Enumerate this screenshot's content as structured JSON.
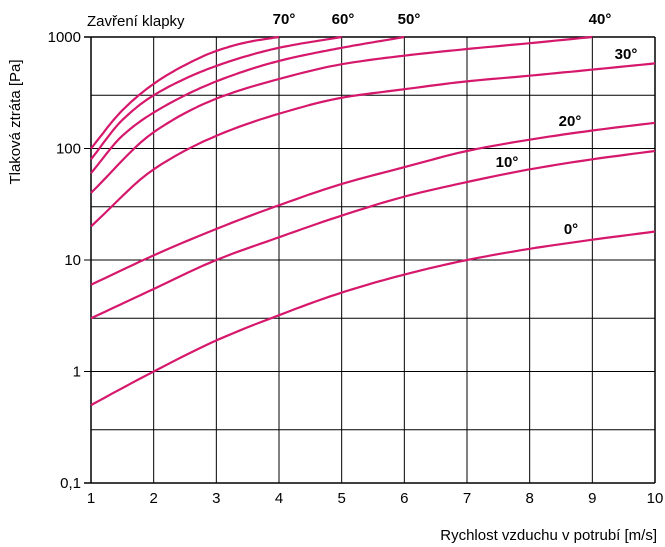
{
  "chart_data": {
    "type": "line",
    "title": "",
    "legend_title": "Zavření klapky",
    "xlabel": "Rychlost vzduchu v potrubí [m/s]",
    "ylabel": "Tlaková ztráta [Pa]",
    "xlim": [
      1,
      10
    ],
    "ylim": [
      0.1,
      1000
    ],
    "yscale": "log",
    "grid": true,
    "x_ticks": [
      "1",
      "2",
      "3",
      "4",
      "5",
      "6",
      "7",
      "8",
      "9",
      "10"
    ],
    "y_ticks": [
      "0,1",
      "1",
      "10",
      "100",
      "1000"
    ],
    "line_color": "#d6186c",
    "series": [
      {
        "name": "0°",
        "x": [
          1,
          2,
          3,
          4,
          5,
          6,
          7,
          8,
          9,
          10
        ],
        "values": [
          0.5,
          1.0,
          1.9,
          3.2,
          5.1,
          7.4,
          10,
          12.6,
          15.2,
          18
        ]
      },
      {
        "name": "10°",
        "x": [
          1,
          2,
          3,
          4,
          5,
          6,
          7,
          8,
          9,
          10
        ],
        "values": [
          3,
          5.5,
          10,
          16,
          25,
          37,
          50,
          65,
          80,
          95
        ]
      },
      {
        "name": "20°",
        "x": [
          1,
          2,
          3,
          4,
          5,
          6,
          7,
          8,
          9,
          10
        ],
        "values": [
          6,
          11,
          19,
          31,
          48,
          68,
          95,
          120,
          145,
          170
        ]
      },
      {
        "name": "30°",
        "x": [
          1,
          2,
          3,
          4,
          5,
          6,
          7,
          8,
          9,
          10
        ],
        "values": [
          20,
          65,
          130,
          205,
          285,
          340,
          400,
          450,
          510,
          580
        ]
      },
      {
        "name": "40°",
        "x": [
          1,
          2,
          3,
          4,
          5,
          6,
          7,
          8,
          9
        ],
        "values": [
          40,
          140,
          280,
          420,
          570,
          680,
          780,
          880,
          1000
        ]
      },
      {
        "name": "50°",
        "x": [
          1,
          1.5,
          2,
          3,
          4,
          5,
          6
        ],
        "values": [
          60,
          130,
          210,
          400,
          610,
          800,
          1000
        ]
      },
      {
        "name": "60°",
        "x": [
          1,
          1.5,
          2,
          3,
          4,
          5
        ],
        "values": [
          80,
          180,
          300,
          550,
          800,
          1000
        ]
      },
      {
        "name": "70°",
        "x": [
          1,
          1.5,
          2,
          2.5,
          3,
          3.5,
          4
        ],
        "values": [
          100,
          220,
          380,
          560,
          750,
          900,
          1000
        ]
      }
    ]
  }
}
